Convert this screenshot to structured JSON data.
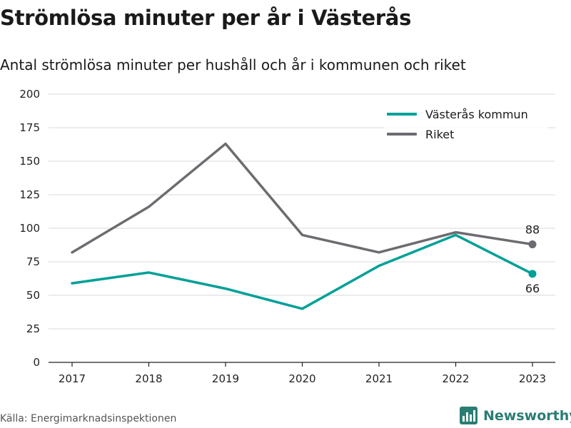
{
  "title": "Strömlösa minuter per år i Västerås",
  "subtitle": "Antal strömlösa minuter per hushåll och år i kommunen och riket",
  "source": "Källa: Energimarknadsinspektionen",
  "brand": "Newsworthy",
  "colors": {
    "vasteras": "#00a098",
    "riket": "#6d6b70",
    "grid": "#d9d9d9",
    "axis": "#222222",
    "brand": "#2a7d74"
  },
  "chart_data": {
    "type": "line",
    "title": "Strömlösa minuter per år i Västerås",
    "subtitle": "Antal strömlösa minuter per hushåll och år i kommunen och riket",
    "xlabel": "",
    "ylabel": "",
    "categories": [
      "2017",
      "2018",
      "2019",
      "2020",
      "2021",
      "2022",
      "2023"
    ],
    "yticks": [
      0,
      25,
      50,
      75,
      100,
      125,
      150,
      175,
      200
    ],
    "ylim": [
      0,
      200
    ],
    "grid": true,
    "legend_position": "top-right",
    "series": [
      {
        "name": "Västerås kommun",
        "color": "#00a098",
        "values": [
          59,
          67,
          55,
          40,
          72,
          95,
          66
        ],
        "end_label": "66"
      },
      {
        "name": "Riket",
        "color": "#6d6b70",
        "values": [
          82,
          116,
          163,
          95,
          82,
          97,
          88
        ],
        "end_label": "88"
      }
    ]
  }
}
